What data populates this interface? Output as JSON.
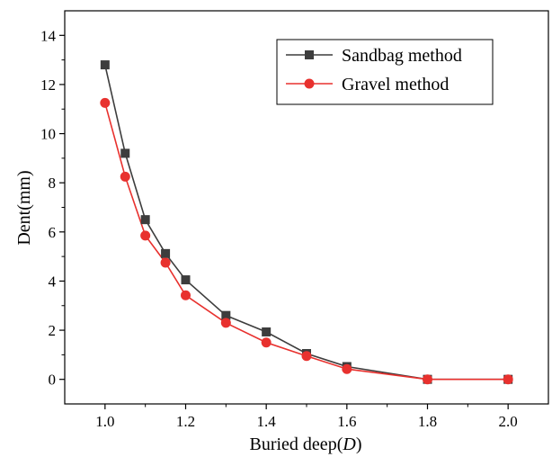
{
  "chart_data": {
    "type": "line",
    "xlabel": "Buried deep(",
    "xlabel_var": "D",
    "xlabel_close": ")",
    "ylabel": "Dent(mm)",
    "xlim": [
      0.9,
      2.1
    ],
    "ylim": [
      -1,
      15
    ],
    "xticks": [
      1.0,
      1.2,
      1.4,
      1.6,
      1.8,
      2.0
    ],
    "xtick_labels": [
      "1.0",
      "1.2",
      "1.4",
      "1.6",
      "1.8",
      "2.0"
    ],
    "yticks": [
      0,
      2,
      4,
      6,
      8,
      10,
      12,
      14
    ],
    "ytick_labels": [
      "0",
      "2",
      "4",
      "6",
      "8",
      "10",
      "12",
      "14"
    ],
    "grid": false,
    "legend_position": "top-right",
    "series": [
      {
        "name": "Sandbag method",
        "color": "#3d3d3d",
        "marker": "square",
        "x": [
          1.0,
          1.05,
          1.1,
          1.15,
          1.2,
          1.3,
          1.4,
          1.5,
          1.6,
          1.8,
          2.0
        ],
        "y": [
          12.8,
          9.2,
          6.5,
          5.12,
          4.05,
          2.6,
          1.93,
          1.05,
          0.52,
          0.0,
          0.0
        ]
      },
      {
        "name": "Gravel method",
        "color": "#e8312e",
        "marker": "circle",
        "x": [
          1.0,
          1.05,
          1.1,
          1.15,
          1.2,
          1.3,
          1.4,
          1.5,
          1.6,
          1.8,
          2.0
        ],
        "y": [
          11.25,
          8.25,
          5.85,
          4.75,
          3.42,
          2.3,
          1.5,
          0.95,
          0.42,
          0.0,
          0.0
        ]
      }
    ]
  }
}
